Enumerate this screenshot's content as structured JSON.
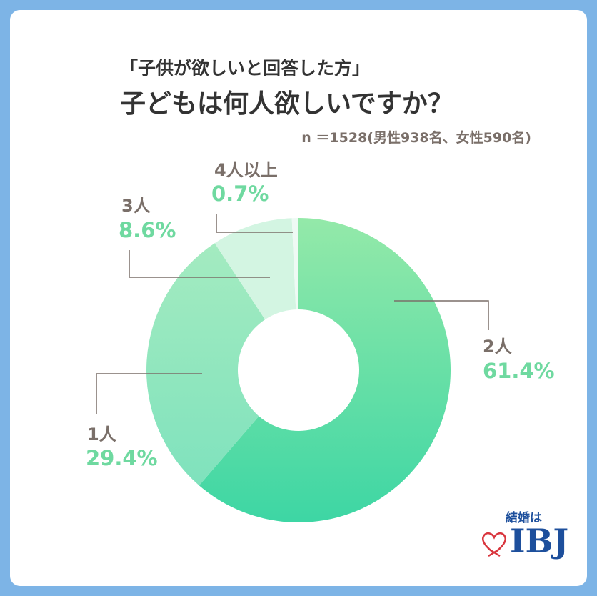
{
  "chart_data": {
    "type": "pie",
    "subtitle": "「子供が欲しいと回答した方」",
    "title": "子どもは何人欲しいですか？",
    "note": "n ＝1528(男性938名、女性590名)",
    "categories": [
      "2人",
      "1人",
      "3人",
      "4人以上"
    ],
    "values": [
      61.4,
      29.4,
      8.6,
      0.7
    ],
    "labels": [
      "61.4%",
      "29.4%",
      "8.6%",
      "0.7%"
    ],
    "colors": [
      "#6fe0a8",
      "#97e6c0",
      "#d3f5e2",
      "#eefaf4"
    ],
    "donut": true
  },
  "logo": {
    "text_top": "結婚は",
    "text_main": "IBJ"
  }
}
